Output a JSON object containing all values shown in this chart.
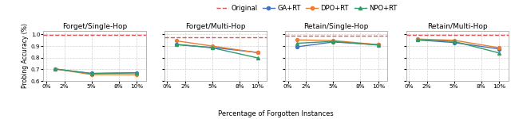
{
  "x_ticks": [
    0,
    2,
    5,
    8,
    10
  ],
  "x_data": [
    1,
    5,
    10
  ],
  "subplots": [
    {
      "title": "Forget/Single-Hop",
      "ylim": [
        0.6,
        1.03
      ],
      "yticks": [
        0.6,
        0.7,
        0.8,
        0.9,
        1.0
      ],
      "yticklabels": [
        "0.6",
        "0.7",
        "0.8",
        "0.9",
        "1.0"
      ],
      "original": 0.995,
      "ga_rt": [
        0.702,
        0.665,
        0.67
      ],
      "dpo_rt": [
        0.703,
        0.655,
        0.653
      ],
      "npo_rt": [
        0.703,
        0.663,
        0.67
      ],
      "show_ylabel": true
    },
    {
      "title": "Forget/Multi-Hop",
      "ylim": [
        0.6,
        1.03
      ],
      "yticks": [
        0.6,
        0.7,
        0.8,
        0.9,
        1.0
      ],
      "yticklabels": [],
      "original": 0.975,
      "ga_rt": [
        0.912,
        0.888,
        0.845
      ],
      "dpo_rt": [
        0.945,
        0.9,
        0.843
      ],
      "npo_rt": [
        0.915,
        0.885,
        0.798
      ],
      "show_ylabel": false
    },
    {
      "title": "Retain/Single-Hop",
      "ylim": [
        0.6,
        1.03
      ],
      "yticks": [
        0.6,
        0.7,
        0.8,
        0.9,
        1.0
      ],
      "yticklabels": [],
      "original": 0.99,
      "ga_rt": [
        0.893,
        0.935,
        0.912
      ],
      "dpo_rt": [
        0.953,
        0.947,
        0.912
      ],
      "npo_rt": [
        0.924,
        0.94,
        0.908
      ],
      "show_ylabel": false
    },
    {
      "title": "Retain/Multi-Hop",
      "ylim": [
        0.6,
        1.03
      ],
      "yticks": [
        0.6,
        0.7,
        0.8,
        0.9,
        1.0
      ],
      "yticklabels": [],
      "original": 0.995,
      "ga_rt": [
        0.953,
        0.93,
        0.875
      ],
      "dpo_rt": [
        0.96,
        0.95,
        0.885
      ],
      "npo_rt": [
        0.953,
        0.94,
        0.84
      ],
      "show_ylabel": false
    }
  ],
  "colors": {
    "original": "#e05555",
    "ga_rt": "#4472c4",
    "dpo_rt": "#ed7d31",
    "npo_rt": "#339966"
  },
  "xlabel": "Percentage of Forgotten Instances",
  "ylabel": "Probing Accuracy (%)"
}
